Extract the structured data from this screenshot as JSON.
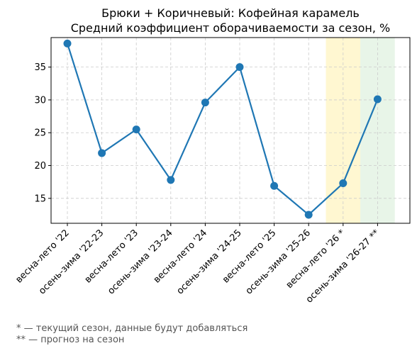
{
  "chart_data": {
    "type": "line",
    "title": "Брюки + Коричневый: Кофейная карамель",
    "subtitle": "Средний коэффициент оборачиваемости за сезон, %",
    "xlabel": "",
    "ylabel": "",
    "categories": [
      "весна-лето '22",
      "осень-зима '22-23",
      "весна-лето '23",
      "осень-зима '23-24",
      "весна-лето '24",
      "осень-зима '24-25",
      "весна-лето '25",
      "осень-зима '25-26",
      "весна-лето '26 *",
      "осень-зима '26-27 **"
    ],
    "series": [
      {
        "values": [
          38.6,
          21.9,
          25.5,
          17.8,
          29.6,
          35.0,
          16.9,
          12.5,
          17.3,
          30.1
        ]
      }
    ],
    "ylim": [
      11.2,
      39.5
    ],
    "yticks": [
      15,
      20,
      25,
      30,
      35
    ],
    "grid": true,
    "line_color": "#1f77b4",
    "highlights": [
      {
        "category_index": 8,
        "color": "#fff2b3",
        "meaning": "current season"
      },
      {
        "category_index": 9,
        "color": "#d9eed9",
        "meaning": "forecast"
      }
    ]
  },
  "footnotes": {
    "current": "* — текущий сезон, данные будут добавляться",
    "forecast": "** — прогноз на сезон"
  }
}
